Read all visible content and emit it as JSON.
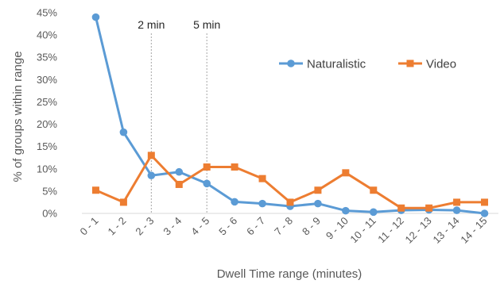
{
  "chart_data": {
    "type": "line",
    "xlabel": "Dwell Time range (minutes)",
    "ylabel": "% of groups within range",
    "ylim": [
      0,
      45
    ],
    "yticks": [
      0,
      5,
      10,
      15,
      20,
      25,
      30,
      35,
      40,
      45
    ],
    "ytick_suffix": "%",
    "grid": false,
    "legend": "top-right",
    "categories": [
      "0 - 1",
      "1 - 2",
      "2 - 3",
      "3 - 4",
      "4 - 5",
      "5 - 6",
      "6 - 7",
      "7 - 8",
      "8 - 9",
      "9 - 10",
      "10 - 11",
      "11 - 12",
      "12 - 13",
      "13 - 14",
      "14 - 15"
    ],
    "series": [
      {
        "name": "Naturalistic",
        "color": "#5B9BD5",
        "marker": "circle",
        "values": [
          44,
          18.2,
          8.5,
          9.3,
          6.7,
          2.6,
          2.2,
          1.6,
          2.2,
          0.6,
          0.3,
          0.7,
          0.8,
          0.7,
          0
        ]
      },
      {
        "name": "Video",
        "color": "#ED7D31",
        "marker": "square",
        "values": [
          5.2,
          2.5,
          13,
          6.5,
          10.4,
          10.4,
          7.8,
          2.5,
          5.2,
          9.1,
          5.2,
          1.2,
          1.2,
          2.5,
          2.5
        ]
      }
    ],
    "annotations": [
      {
        "label": "2 min",
        "at_category": "2 - 3",
        "style": "dotted-vertical-line"
      },
      {
        "label": "5 min",
        "at_category": "4 - 5",
        "style": "dotted-vertical-line"
      }
    ]
  }
}
